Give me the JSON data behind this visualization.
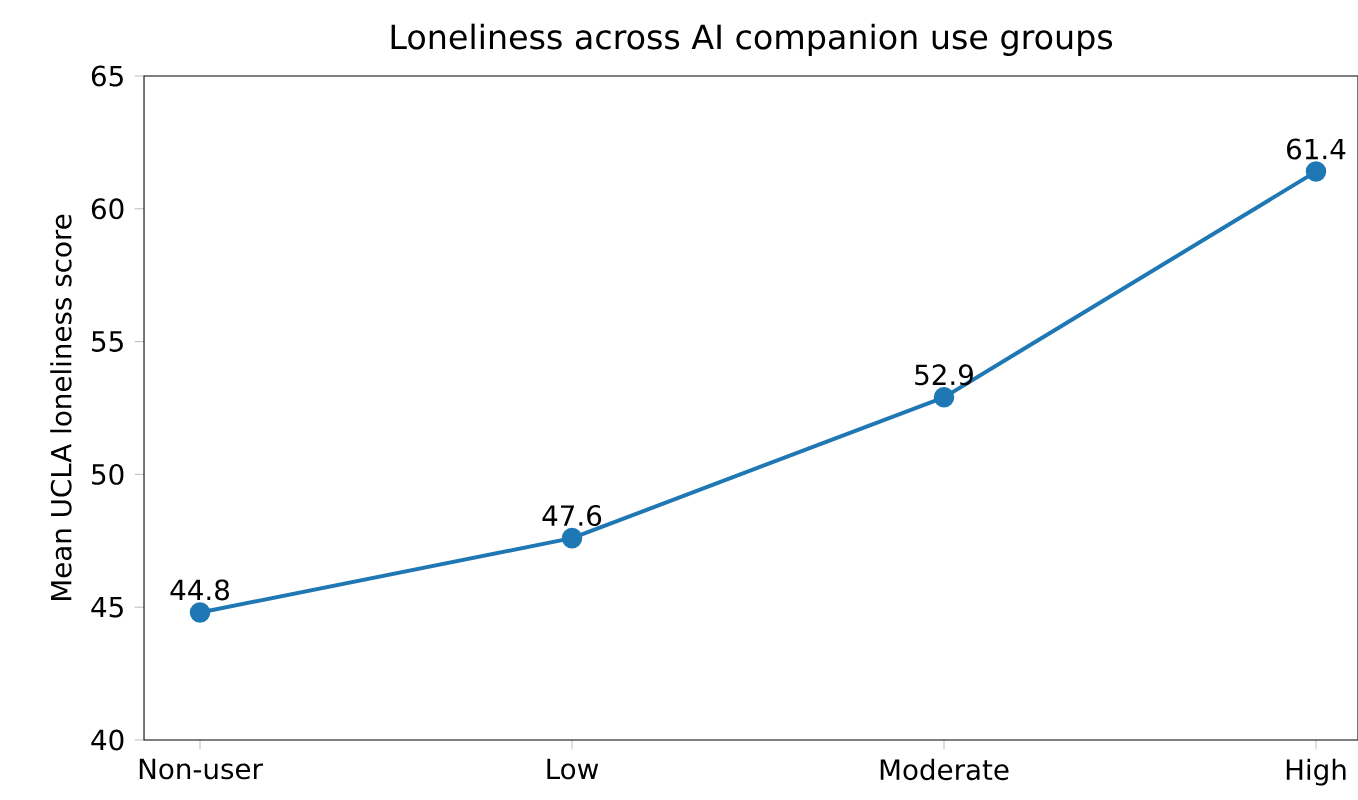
{
  "chart_data": {
    "type": "line",
    "title": "Loneliness across AI companion use groups",
    "ylabel": "Mean UCLA loneliness score",
    "categories": [
      "Non-user",
      "Low",
      "Moderate",
      "High"
    ],
    "values": [
      44.8,
      47.6,
      52.9,
      61.4
    ],
    "color": "#1f77b4",
    "marker": "circle",
    "line_style": "solid",
    "data_labels": true,
    "ylim": [
      40,
      65
    ],
    "yticks": [
      40,
      45,
      50,
      55,
      60,
      65
    ]
  }
}
